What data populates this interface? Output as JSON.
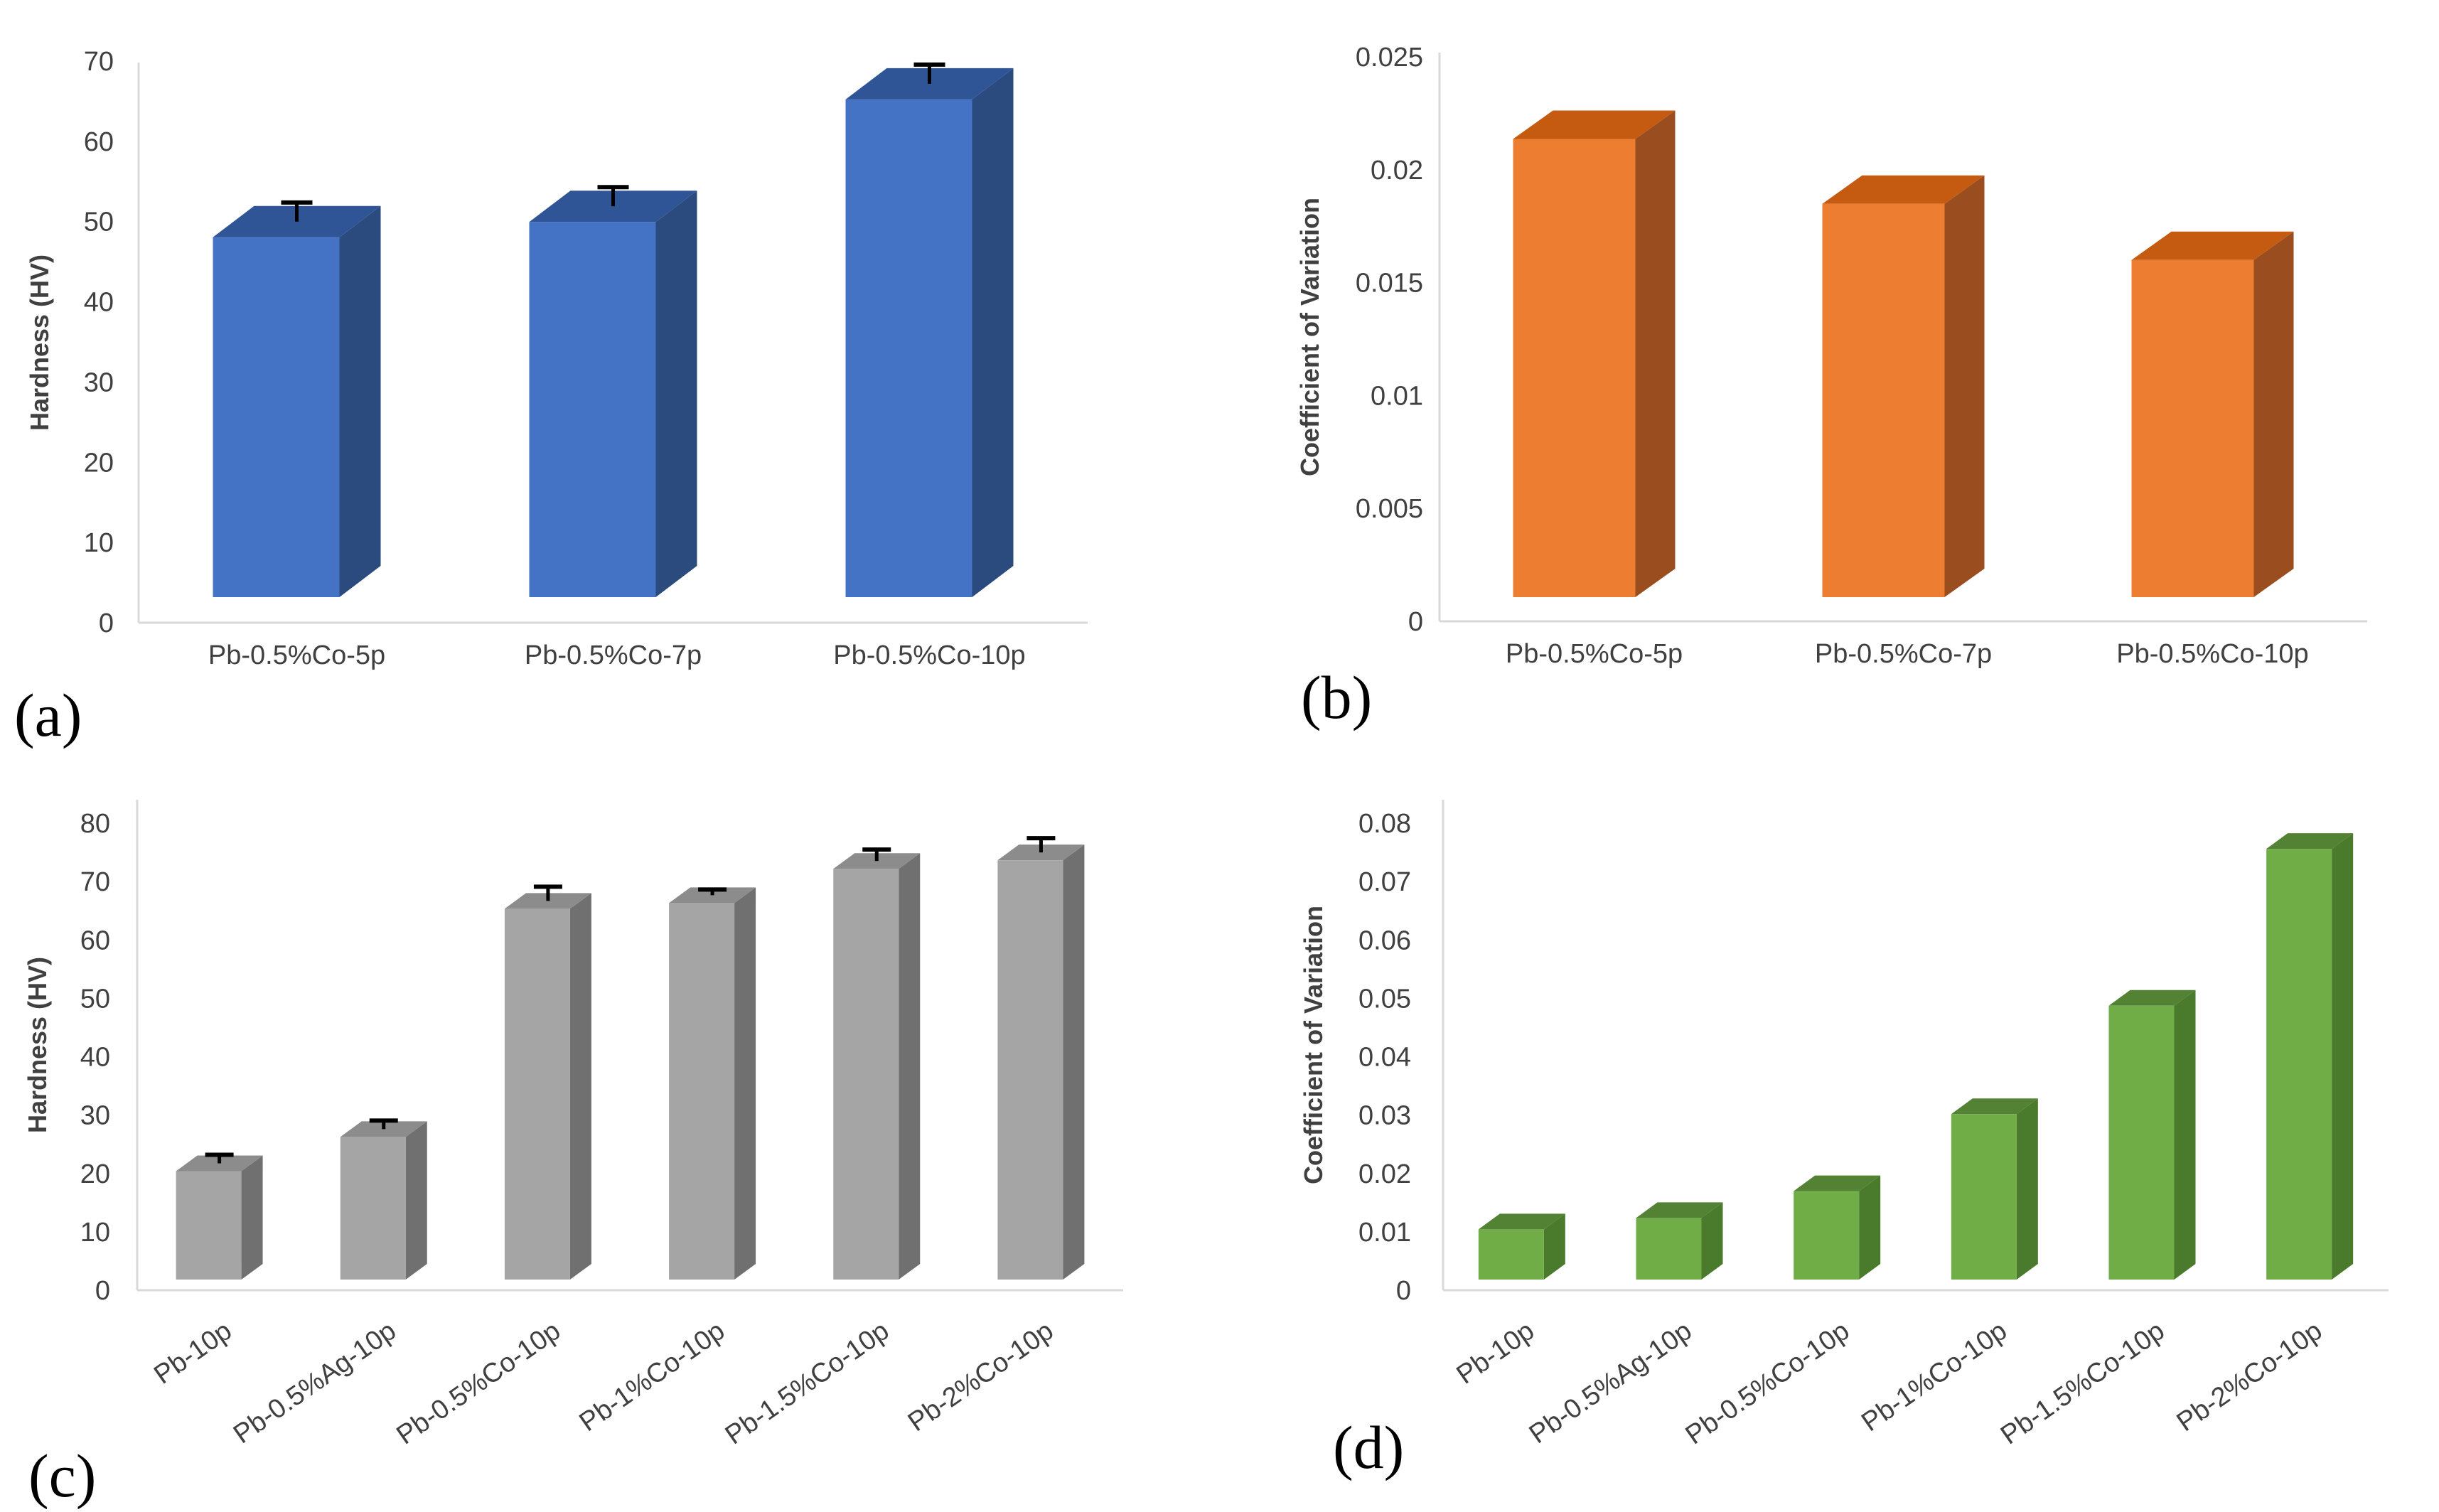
{
  "charts": [
    {
      "id": "a",
      "panel_label": "(a)",
      "type": "bar",
      "style": "3d",
      "title": "",
      "xlabel": "",
      "ylabel": "Hardness (HV)",
      "categories": [
        "Pb-0.5%Co-5p",
        "Pb-0.5%Co-7p",
        "Pb-0.5%Co-10p"
      ],
      "values": [
        47,
        49,
        65
      ],
      "errors": [
        2.5,
        2.5,
        2.5
      ],
      "ylim": [
        0,
        70
      ],
      "yticks": [
        "0",
        "10",
        "20",
        "30",
        "40",
        "50",
        "60",
        "70"
      ],
      "colors": {
        "front": "#4472C4",
        "top": "#2F5597",
        "side": "#2B4A7E"
      }
    },
    {
      "id": "b",
      "panel_label": "(b)",
      "type": "bar",
      "style": "3d",
      "title": "",
      "xlabel": "",
      "ylabel": "Coefficient of Variation",
      "categories": [
        "Pb-0.5%Co-5p",
        "Pb-0.5%Co-7p",
        "Pb-0.5%Co-10p"
      ],
      "values": [
        0.0212,
        0.0182,
        0.0156
      ],
      "errors": [],
      "ylim": [
        0,
        0.025
      ],
      "yticks": [
        "0",
        "0.005",
        "0.01",
        "0.015",
        "0.02",
        "0.025"
      ],
      "colors": {
        "front": "#ED7D31",
        "top": "#C55A11",
        "side": "#9A4D1E"
      }
    },
    {
      "id": "c",
      "panel_label": "(c)",
      "type": "bar",
      "style": "3d",
      "title": "",
      "xlabel": "",
      "ylabel": "Hardness (HV)",
      "categories": [
        "Pb-10p",
        "Pb-0.5%Ag-10p",
        "Pb-0.5%Co-10p",
        "Pb-1%Co-10p",
        "Pb-1.5%Co-10p",
        "Pb-2%Co-10p"
      ],
      "values": [
        19,
        25,
        65,
        66,
        72,
        73.5
      ],
      "errors": [
        1.5,
        1.5,
        2.5,
        1,
        2,
        2.5
      ],
      "ylim": [
        0,
        80
      ],
      "yticks": [
        "0",
        "10",
        "20",
        "30",
        "40",
        "50",
        "60",
        "70",
        "80"
      ],
      "colors": {
        "front": "#A5A5A5",
        "top": "#8C8C8C",
        "side": "#707070"
      }
    },
    {
      "id": "d",
      "panel_label": "(d)",
      "type": "bar",
      "style": "3d",
      "title": "",
      "xlabel": "",
      "ylabel": "Coefficient of Variation",
      "categories": [
        "Pb-10p",
        "Pb-0.5%Ag-10p",
        "Pb-0.5%Co-10p",
        "Pb-1%Co-10p",
        "Pb-1.5%Co-10p",
        "Pb-2%Co-10p"
      ],
      "values": [
        0.0088,
        0.0108,
        0.0155,
        0.029,
        0.048,
        0.0755
      ],
      "errors": [],
      "ylim": [
        0,
        0.08
      ],
      "yticks": [
        "0",
        "0.01",
        "0.02",
        "0.03",
        "0.04",
        "0.05",
        "0.06",
        "0.07",
        "0.08"
      ],
      "colors": {
        "front": "#70AD47",
        "top": "#548235",
        "side": "#4A7A2C"
      }
    }
  ]
}
